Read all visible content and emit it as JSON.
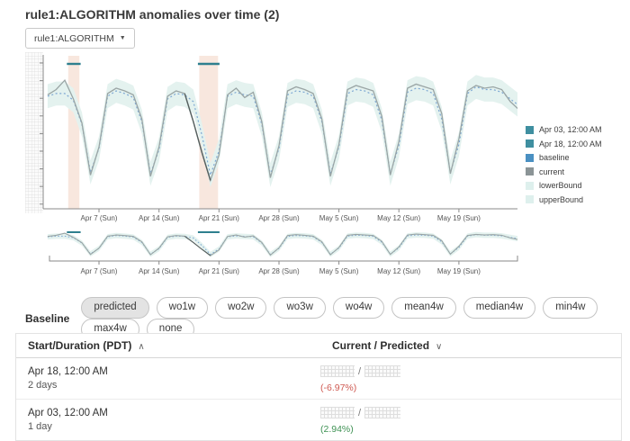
{
  "page": {
    "title": "rule1:ALGORITHM anomalies over time (2)"
  },
  "filter": {
    "dropdown_label": "rule1:ALGORITHM",
    "dropdown_caret": "▼"
  },
  "legend": {
    "items": [
      {
        "label": "Apr 03, 12:00 AM",
        "color": "#3f8fa0"
      },
      {
        "label": "Apr 18, 12:00 AM",
        "color": "#3f8fa0"
      },
      {
        "label": "baseline",
        "color": "#4a90c2"
      },
      {
        "label": "current",
        "color": "#8b9496"
      },
      {
        "label": "lowerBound",
        "color": "#def0ed"
      },
      {
        "label": "upperBound",
        "color": "#def0ed"
      }
    ]
  },
  "baseline_bar": {
    "label": "Baseline",
    "options": [
      {
        "label": "predicted",
        "selected": true
      },
      {
        "label": "wo1w",
        "selected": false
      },
      {
        "label": "wo2w",
        "selected": false
      },
      {
        "label": "wo3w",
        "selected": false
      },
      {
        "label": "wo4w",
        "selected": false
      },
      {
        "label": "mean4w",
        "selected": false
      },
      {
        "label": "median4w",
        "selected": false
      },
      {
        "label": "min4w",
        "selected": false
      },
      {
        "label": "max4w",
        "selected": false
      },
      {
        "label": "none",
        "selected": false
      }
    ]
  },
  "table": {
    "headers": {
      "col1": "Start/Duration (PDT)",
      "col1_sort_icon": "∧",
      "col2": "Current / Predicted",
      "col2_sort_icon": "∨"
    },
    "value_slash": "/",
    "rows": [
      {
        "start": "Apr 18, 12:00 AM",
        "duration": "2 days",
        "current": "redacted",
        "predicted": "redacted",
        "delta": "(-6.97%)",
        "delta_color": "#cf5a52"
      },
      {
        "start": "Apr 03, 12:00 AM",
        "duration": "1 day",
        "current": "redacted",
        "predicted": "redacted",
        "delta": "(2.94%)",
        "delta_color": "#3f9254"
      }
    ]
  },
  "chart_data": {
    "type": "line",
    "title": "rule1:ALGORITHM anomalies over time (2)",
    "x_unit": "days since Mar 31 (Sun)",
    "x_tick_days": [
      7,
      14,
      21,
      28,
      35,
      42,
      49
    ],
    "x_tick_labels": [
      "Apr 7 (Sun)",
      "Apr 14 (Sun)",
      "Apr 21 (Sun)",
      "Apr 28 (Sun)",
      "May 5 (Sun)",
      "May 12 (Sun)",
      "May 19 (Sun)"
    ],
    "y_tick_labels_visible": false,
    "legend_position": "right",
    "series": [
      {
        "name": "current",
        "values": [
          40,
          75,
          79,
          86,
          72,
          54,
          15,
          36,
          76,
          80,
          78,
          75,
          57,
          14,
          36,
          74,
          78,
          76,
          55,
          32,
          11,
          30,
          75,
          80,
          73,
          77,
          55,
          13,
          37,
          78,
          81,
          79,
          76,
          57,
          14,
          38,
          79,
          82,
          80,
          78,
          59,
          15,
          40,
          80,
          83,
          81,
          79,
          61,
          16,
          42,
          78,
          82,
          80,
          81,
          79,
          70,
          64
        ]
      },
      {
        "name": "baseline",
        "values": [
          42,
          74,
          76,
          76,
          71,
          53,
          17,
          35,
          74,
          78,
          76,
          73,
          55,
          16,
          34,
          72,
          76,
          75,
          70,
          45,
          15,
          33,
          74,
          77,
          75,
          74,
          53,
          15,
          35,
          75,
          78,
          77,
          74,
          55,
          16,
          36,
          76,
          79,
          78,
          75,
          56,
          16,
          37,
          77,
          80,
          79,
          76,
          57,
          17,
          38,
          76,
          81,
          79,
          79,
          77,
          72,
          67
        ]
      }
    ],
    "bound_offset": 9,
    "anomalies": [
      {
        "label": "Apr 03, 12:00 AM",
        "duration": "1 day",
        "d_start": 3.4,
        "d_end": 4.7,
        "change": "2.94%"
      },
      {
        "label": "Apr 18, 12:00 AM",
        "duration": "2 days",
        "d_start": 18.7,
        "d_end": 20.9,
        "change": "-6.97%"
      }
    ],
    "anomaly_highlight_days": [
      17,
      20
    ],
    "colors": {
      "current_line": "#9aa5a5",
      "current_anomaly_line": "#56605f",
      "baseline_line": "#7ea8d3",
      "bound_band": "#e4f2ef",
      "anomaly_region": "#f8e7de",
      "anomaly_bar": "#2e7f8e",
      "axis": "#8a8a8a",
      "tick_label": "#555555"
    }
  }
}
